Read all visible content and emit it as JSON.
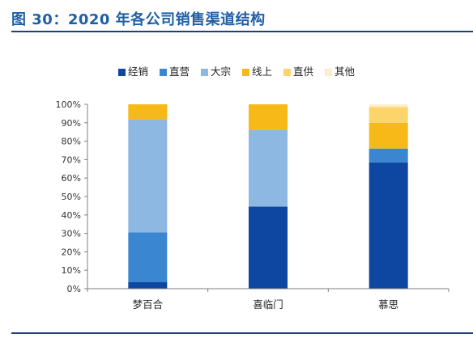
{
  "figure": {
    "title": "图 30：2020 年各公司销售渠道结构"
  },
  "colors": {
    "title": "#1f5fa6",
    "rule": "#1f3f77",
    "axis": "#7f7f7f"
  },
  "chart_data": {
    "type": "bar",
    "stacked": true,
    "categories": [
      "梦百合",
      "喜临门",
      "慕思"
    ],
    "ylim": [
      0,
      100
    ],
    "yticks": [
      "0%",
      "10%",
      "20%",
      "30%",
      "40%",
      "50%",
      "60%",
      "70%",
      "80%",
      "90%",
      "100%"
    ],
    "grid": false,
    "legend_position": "top",
    "series": [
      {
        "name": "经销",
        "color": "#0d47a1",
        "values": [
          3.5,
          44.5,
          68.5
        ]
      },
      {
        "name": "直营",
        "color": "#3b86d1",
        "values": [
          27,
          0,
          7.5
        ]
      },
      {
        "name": "大宗",
        "color": "#8cb8e2",
        "values": [
          61.5,
          41.5,
          0
        ]
      },
      {
        "name": "线上",
        "color": "#f7b918",
        "values": [
          8,
          14,
          14
        ]
      },
      {
        "name": "直供",
        "color": "#fbd56b",
        "values": [
          0,
          0,
          8.5
        ]
      },
      {
        "name": "其他",
        "color": "#fdeecb",
        "values": [
          0,
          0,
          1.5
        ]
      }
    ]
  }
}
